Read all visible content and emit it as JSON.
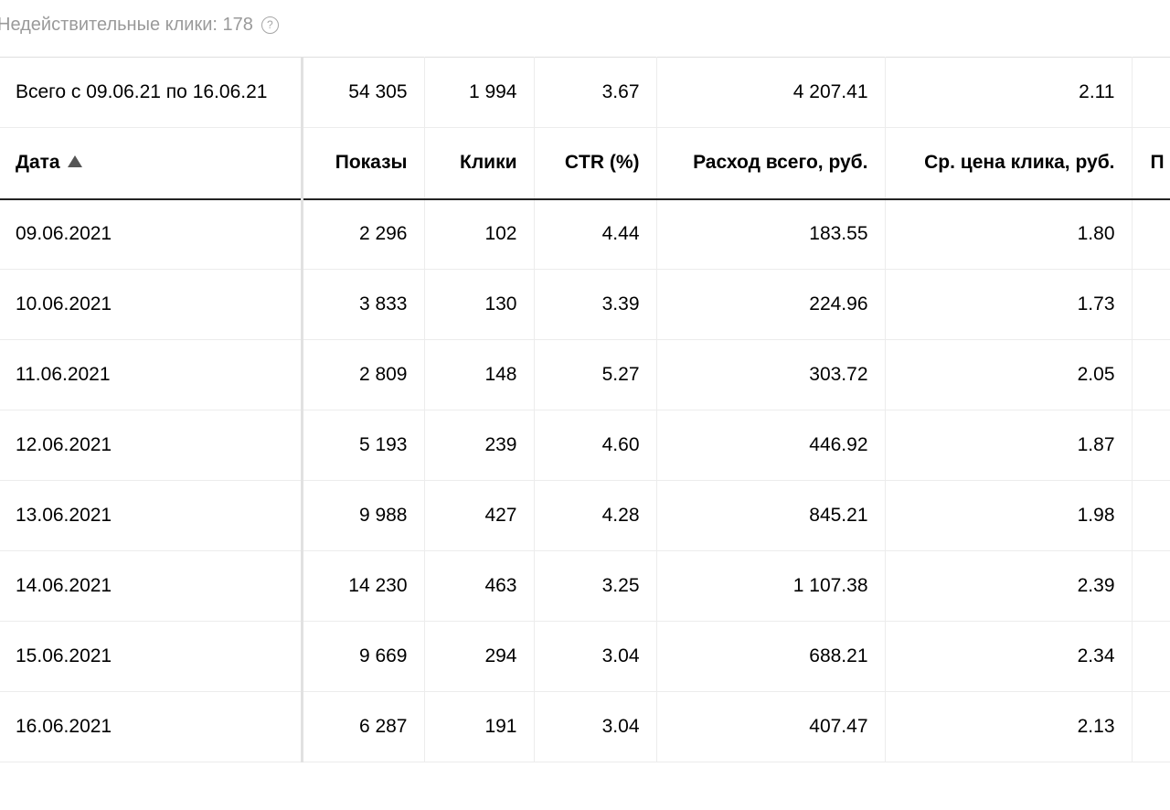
{
  "invalid_clicks": {
    "label": "Недействительные клики: 178",
    "help_glyph": "?"
  },
  "total": {
    "label": "Всего с 09.06.21 по 16.06.21",
    "shows": "54 305",
    "clicks": "1 994",
    "ctr": "3.67",
    "cost": "4 207.41",
    "avg_cpc": "2.11"
  },
  "columns": {
    "date": "Дата",
    "shows": "Показы",
    "clicks": "Клики",
    "ctr": "CTR (%)",
    "cost": "Расход всего, руб.",
    "avg_cpc": "Ср. цена клика, руб.",
    "cut": "П"
  },
  "rows": [
    {
      "date": "09.06.2021",
      "shows": "2 296",
      "clicks": "102",
      "ctr": "4.44",
      "cost": "183.55",
      "avg_cpc": "1.80"
    },
    {
      "date": "10.06.2021",
      "shows": "3 833",
      "clicks": "130",
      "ctr": "3.39",
      "cost": "224.96",
      "avg_cpc": "1.73"
    },
    {
      "date": "11.06.2021",
      "shows": "2 809",
      "clicks": "148",
      "ctr": "5.27",
      "cost": "303.72",
      "avg_cpc": "2.05"
    },
    {
      "date": "12.06.2021",
      "shows": "5 193",
      "clicks": "239",
      "ctr": "4.60",
      "cost": "446.92",
      "avg_cpc": "1.87"
    },
    {
      "date": "13.06.2021",
      "shows": "9 988",
      "clicks": "427",
      "ctr": "4.28",
      "cost": "845.21",
      "avg_cpc": "1.98"
    },
    {
      "date": "14.06.2021",
      "shows": "14 230",
      "clicks": "463",
      "ctr": "3.25",
      "cost": "1 107.38",
      "avg_cpc": "2.39"
    },
    {
      "date": "15.06.2021",
      "shows": "9 669",
      "clicks": "294",
      "ctr": "3.04",
      "cost": "688.21",
      "avg_cpc": "2.34"
    },
    {
      "date": "16.06.2021",
      "shows": "6 287",
      "clicks": "191",
      "ctr": "3.04",
      "cost": "407.47",
      "avg_cpc": "2.13"
    }
  ]
}
